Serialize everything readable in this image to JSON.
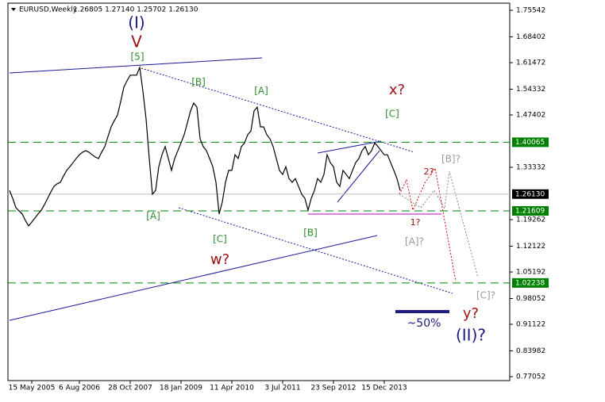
{
  "chart_data": {
    "type": "line",
    "title": "EURUSD,Weekly",
    "subtitle": "1.26805 1.27140 1.25702 1.26130",
    "color": "#000000",
    "categories": [
      null,
      null,
      null,
      null,
      null,
      null,
      null,
      "15 May 2005",
      null,
      null,
      null,
      null,
      null,
      null,
      null,
      null,
      null,
      null,
      null,
      null,
      null,
      null,
      "6 Aug 2006",
      null,
      null,
      null,
      null,
      null,
      null,
      null,
      null,
      null,
      null,
      null,
      null,
      null,
      null,
      null,
      "28 Oct 2007",
      null,
      null,
      null,
      null,
      null,
      null,
      null,
      null,
      null,
      null,
      null,
      null,
      null,
      null,
      null,
      "18 Jan 2009",
      null,
      null,
      null,
      null,
      null,
      null,
      null,
      null,
      null,
      null,
      null,
      null,
      null,
      null,
      null,
      "11 Apr 2010",
      null,
      null,
      null,
      null,
      null,
      null,
      null,
      null,
      null,
      null,
      null,
      null,
      null,
      null,
      null,
      "3 Jul 2011",
      null,
      null,
      null,
      null,
      null,
      null,
      null,
      null,
      null,
      null,
      null,
      null,
      null,
      null,
      null,
      "23 Sep 2012",
      null,
      null,
      null,
      null,
      null,
      null,
      null,
      null,
      null,
      null,
      null,
      null,
      null,
      null,
      null,
      "15 Dec 2013",
      null,
      null,
      null,
      null,
      null
    ],
    "values": [
      1.271,
      1.25,
      1.225,
      1.216,
      1.208,
      1.19,
      1.176,
      1.186,
      1.197,
      1.208,
      1.218,
      1.233,
      1.25,
      1.267,
      1.282,
      1.289,
      1.293,
      1.31,
      1.325,
      1.335,
      1.346,
      1.357,
      1.367,
      1.374,
      1.378,
      1.374,
      1.367,
      1.361,
      1.357,
      1.374,
      1.389,
      1.416,
      1.442,
      1.459,
      1.474,
      1.51,
      1.549,
      1.566,
      1.581,
      1.581,
      1.581,
      1.602,
      1.538,
      1.463,
      1.357,
      1.261,
      1.271,
      1.335,
      1.367,
      1.389,
      1.357,
      1.325,
      1.357,
      1.378,
      1.399,
      1.421,
      1.453,
      1.485,
      1.506,
      1.495,
      1.41,
      1.389,
      1.378,
      1.357,
      1.335,
      1.293,
      1.208,
      1.24,
      1.293,
      1.325,
      1.325,
      1.367,
      1.357,
      1.389,
      1.399,
      1.421,
      1.431,
      1.485,
      1.495,
      1.442,
      1.442,
      1.421,
      1.41,
      1.389,
      1.357,
      1.325,
      1.314,
      1.335,
      1.303,
      1.293,
      1.303,
      1.282,
      1.261,
      1.25,
      1.218,
      1.25,
      1.271,
      1.303,
      1.293,
      1.314,
      1.367,
      1.346,
      1.335,
      1.293,
      1.282,
      1.325,
      1.314,
      1.303,
      1.325,
      1.346,
      1.357,
      1.378,
      1.389,
      1.367,
      1.378,
      1.399,
      1.389,
      1.378,
      1.367,
      1.367,
      1.346,
      1.325,
      1.303,
      1.271
    ],
    "ylim": [
      0.7599,
      1.7746
    ],
    "yticks": [
      1.75542,
      1.68402,
      1.61472,
      1.54332,
      1.47402,
      1.33332,
      1.19262,
      1.12122,
      1.05192,
      0.98052,
      0.91122,
      0.83982,
      0.77052
    ],
    "levels": [
      1.40065,
      1.21609,
      1.02238
    ],
    "level_color": "#008000",
    "current_price": {
      "value": 1.2613,
      "label": "1.26130"
    },
    "annotations": [
      {
        "text": "(I)",
        "color": "#1a1a80"
      },
      {
        "text": "V",
        "color": "#a01010"
      },
      {
        "text": "[5]",
        "color": "#2e8b2e"
      },
      {
        "text": "[B]",
        "color": "#2e8b2e"
      },
      {
        "text": "[A]",
        "color": "#2e8b2e"
      },
      {
        "text": "x?",
        "color": "#a01010"
      },
      {
        "text": "[C]",
        "color": "#2e8b2e"
      },
      {
        "text": "[B]?",
        "color": "#999999"
      },
      {
        "text": "2?",
        "color": "#a01010"
      },
      {
        "text": "1?",
        "color": "#a01010"
      },
      {
        "text": "[A]?",
        "color": "#999999"
      },
      {
        "text": "[A]",
        "color": "#2e8b2e"
      },
      {
        "text": "[C]",
        "color": "#2e8b2e"
      },
      {
        "text": "w?",
        "color": "#a01010"
      },
      {
        "text": "[B]",
        "color": "#2e8b2e"
      },
      {
        "text": "[C]?",
        "color": "#999999"
      },
      {
        "text": "y?",
        "color": "#a01010"
      },
      {
        "text": "(II)?",
        "color": "#1a1a80"
      },
      {
        "text": "~50%",
        "color": "#1a1a80"
      }
    ]
  }
}
